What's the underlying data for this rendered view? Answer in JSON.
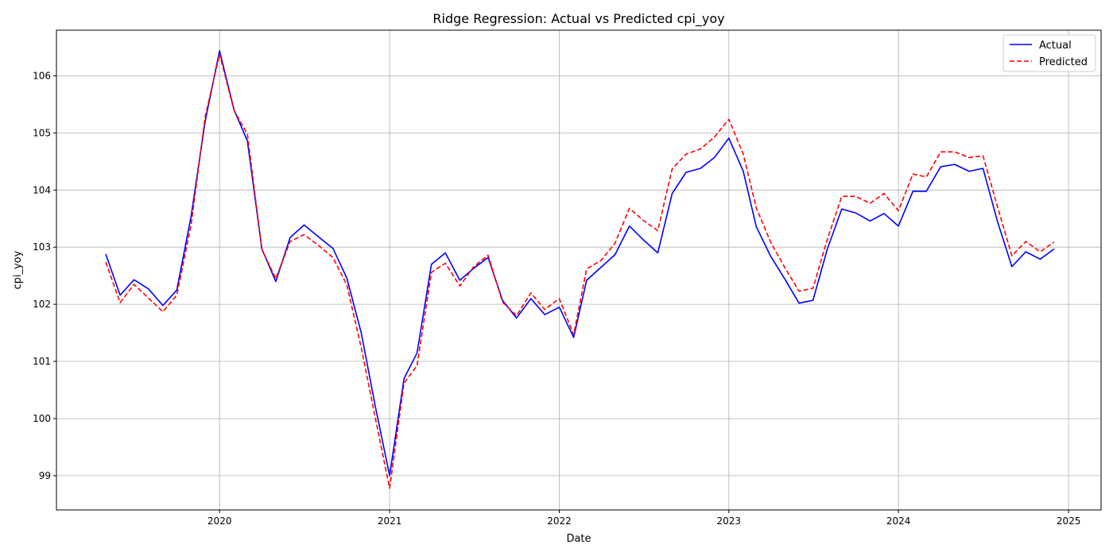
{
  "chart_data": {
    "type": "line",
    "title": "Ridge Regression: Actual vs Predicted cpi_yoy",
    "xlabel": "Date",
    "ylabel": "cpi_yoy",
    "ylim": [
      98.4,
      106.8
    ],
    "xlim": [
      "2019-01-15",
      "2025-03-12"
    ],
    "grid": true,
    "legend_position": "top-right",
    "x_ticks": [
      {
        "date": "2020-01-01",
        "label": "2020"
      },
      {
        "date": "2021-01-01",
        "label": "2021"
      },
      {
        "date": "2022-01-01",
        "label": "2022"
      },
      {
        "date": "2023-01-01",
        "label": "2023"
      },
      {
        "date": "2024-01-01",
        "label": "2024"
      },
      {
        "date": "2025-01-01",
        "label": "2025"
      }
    ],
    "y_ticks": [
      {
        "value": 99,
        "label": "99"
      },
      {
        "value": 100,
        "label": "100"
      },
      {
        "value": 101,
        "label": "101"
      },
      {
        "value": 102,
        "label": "102"
      },
      {
        "value": 103,
        "label": "103"
      },
      {
        "value": 104,
        "label": "104"
      },
      {
        "value": 105,
        "label": "105"
      },
      {
        "value": 106,
        "label": "106"
      }
    ],
    "x": [
      "2019-05",
      "2019-06",
      "2019-07",
      "2019-08",
      "2019-09",
      "2019-10",
      "2019-11",
      "2019-12",
      "2020-01",
      "2020-02",
      "2020-03",
      "2020-04",
      "2020-05",
      "2020-06",
      "2020-07",
      "2020-08",
      "2020-09",
      "2020-10",
      "2020-11",
      "2020-12",
      "2021-01",
      "2021-02",
      "2021-03",
      "2021-04",
      "2021-05",
      "2021-06",
      "2021-07",
      "2021-08",
      "2021-09",
      "2021-10",
      "2021-11",
      "2021-12",
      "2022-01",
      "2022-02",
      "2022-03",
      "2022-04",
      "2022-05",
      "2022-06",
      "2022-07",
      "2022-08",
      "2022-09",
      "2022-10",
      "2022-11",
      "2022-12",
      "2023-01",
      "2023-02",
      "2023-03",
      "2023-04",
      "2023-05",
      "2023-06",
      "2023-07",
      "2023-08",
      "2023-09",
      "2023-10",
      "2023-11",
      "2023-12",
      "2024-01",
      "2024-02",
      "2024-03",
      "2024-04",
      "2024-05",
      "2024-06",
      "2024-07",
      "2024-08",
      "2024-09",
      "2024-10",
      "2024-11",
      "2024-12"
    ],
    "series": [
      {
        "name": "Actual",
        "color": "#0000ff",
        "style": "solid",
        "values": [
          102.88,
          102.16,
          102.43,
          102.27,
          101.98,
          102.25,
          103.55,
          105.2,
          106.44,
          105.41,
          104.86,
          102.97,
          102.4,
          103.17,
          103.39,
          103.18,
          102.98,
          102.46,
          101.5,
          100.22,
          99.0,
          100.7,
          101.15,
          102.7,
          102.9,
          102.42,
          102.63,
          102.82,
          102.07,
          101.76,
          102.1,
          101.82,
          101.95,
          101.42,
          102.42,
          102.65,
          102.87,
          103.37,
          103.13,
          102.9,
          103.94,
          104.31,
          104.38,
          104.57,
          104.91,
          104.33,
          103.36,
          102.84,
          102.45,
          102.02,
          102.07,
          102.97,
          103.67,
          103.6,
          103.46,
          103.59,
          103.37,
          103.98,
          103.98,
          104.41,
          104.45,
          104.33,
          104.38,
          103.45,
          102.66,
          102.92,
          102.79,
          102.97
        ]
      },
      {
        "name": "Predicted",
        "color": "#ff0000",
        "style": "dashed",
        "values": [
          102.74,
          102.03,
          102.35,
          102.11,
          101.87,
          102.16,
          103.4,
          105.28,
          106.38,
          105.4,
          104.98,
          102.96,
          102.45,
          103.1,
          103.22,
          103.03,
          102.82,
          102.34,
          101.24,
          100.02,
          98.78,
          100.62,
          100.93,
          102.56,
          102.72,
          102.32,
          102.66,
          102.86,
          102.04,
          101.8,
          102.2,
          101.91,
          102.1,
          101.47,
          102.62,
          102.77,
          103.07,
          103.68,
          103.47,
          103.29,
          104.37,
          104.63,
          104.72,
          104.93,
          105.24,
          104.63,
          103.69,
          103.09,
          102.65,
          102.23,
          102.28,
          103.14,
          103.89,
          103.89,
          103.77,
          103.94,
          103.64,
          104.28,
          104.23,
          104.67,
          104.67,
          104.57,
          104.6,
          103.71,
          102.85,
          103.1,
          102.92,
          103.09
        ]
      }
    ]
  }
}
